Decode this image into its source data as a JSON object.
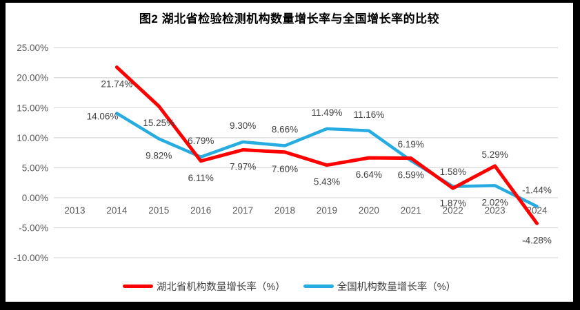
{
  "window": {
    "frame_color": "#000000",
    "panel_color": "#FFFFFF"
  },
  "chart_data": {
    "type": "line",
    "title": "图2  湖北省检验检测机构数量增长率与全国增长率的比较",
    "categories": [
      "2013",
      "2014",
      "2015",
      "2016",
      "2017",
      "2018",
      "2019",
      "2020",
      "2021",
      "2022",
      "2023",
      "2024"
    ],
    "xlabel": "",
    "ylabel": "",
    "y_axis": {
      "min": -10,
      "max": 25,
      "step": 5,
      "tick_labels": [
        "25.00%",
        "20.00%",
        "15.00%",
        "10.00%",
        "5.00%",
        "0.00%",
        "-5.00%",
        "-10.00%"
      ]
    },
    "grid": true,
    "grid_color": "#D9D9D9",
    "axis_text_color": "#595959",
    "label_text_color": "#404040",
    "legend_position": "bottom",
    "series": [
      {
        "name": "湖北省机构数量增长率（%）",
        "color": "#FF0000",
        "values": [
          null,
          21.74,
          15.25,
          6.11,
          7.97,
          7.6,
          5.43,
          6.64,
          6.59,
          1.58,
          5.29,
          -4.28
        ],
        "labels": [
          null,
          "21.74%",
          "15.25%",
          "6.11%",
          "7.97%",
          "7.60%",
          "5.43%",
          "6.64%",
          "6.59%",
          "1.58%",
          "5.29%",
          "-4.28%"
        ],
        "label_pos": [
          null,
          "below",
          "below",
          "below",
          "below",
          "below",
          "below",
          "below",
          "below",
          "above",
          "above-near",
          "below"
        ]
      },
      {
        "name": "全国机构数量增长率（%）",
        "color": "#27ACE2",
        "values": [
          null,
          14.06,
          9.82,
          6.79,
          9.3,
          8.66,
          11.49,
          11.16,
          6.19,
          1.87,
          2.02,
          -1.44
        ],
        "labels": [
          null,
          "14.06%",
          "9.82%",
          "6.79%",
          "9.30%",
          "8.66%",
          "11.49%",
          "11.16%",
          "6.19%",
          "1.87%",
          "2.02%",
          "-1.44%"
        ],
        "label_pos": [
          null,
          "left",
          "below",
          "above",
          "above",
          "above",
          "above",
          "above",
          "above",
          "below",
          "below",
          "above"
        ]
      }
    ]
  }
}
